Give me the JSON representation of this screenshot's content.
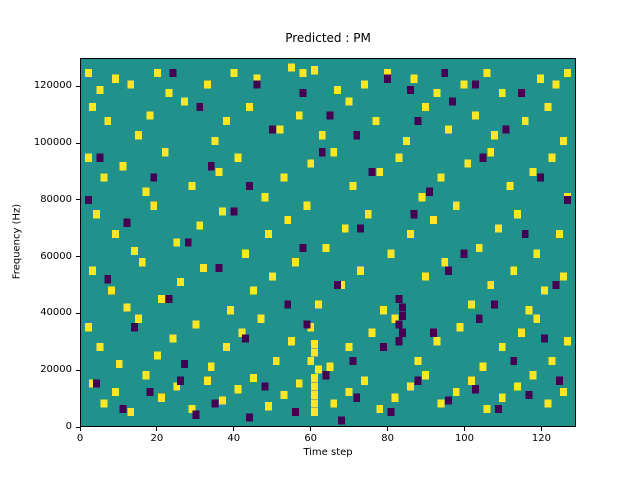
{
  "figure": {
    "background": "#ffffff"
  },
  "chart_data": {
    "type": "heatmap",
    "title": "Predicted : PM",
    "xlabel": "Time step",
    "ylabel": "Frequency (Hz)",
    "xlim": [
      0,
      129
    ],
    "ylim": [
      0,
      130000
    ],
    "x_ticks": [
      0,
      20,
      40,
      60,
      80,
      100,
      120
    ],
    "y_ticks": [
      0,
      20000,
      40000,
      60000,
      80000,
      100000,
      120000
    ],
    "grid": false,
    "legend": "none",
    "colors": {
      "background": "#21918c",
      "high": "#fde725",
      "low": "#440154"
    },
    "cell_size": {
      "width_steps": 1.8,
      "height_hz": 2900
    },
    "series": [
      {
        "name": "high",
        "color_key": "high",
        "points": [
          [
            2,
            125000
          ],
          [
            5,
            119000
          ],
          [
            9,
            123000
          ],
          [
            13,
            121000
          ],
          [
            20,
            125000
          ],
          [
            23,
            118000
          ],
          [
            33,
            121000
          ],
          [
            40,
            125000
          ],
          [
            46,
            123000
          ],
          [
            55,
            127000
          ],
          [
            58,
            125000
          ],
          [
            61,
            126000
          ],
          [
            67,
            119000
          ],
          [
            74,
            121000
          ],
          [
            80,
            125000
          ],
          [
            87,
            123000
          ],
          [
            93,
            118000
          ],
          [
            100,
            121000
          ],
          [
            106,
            125000
          ],
          [
            110,
            118000
          ],
          [
            120,
            123000
          ],
          [
            124,
            121000
          ],
          [
            127,
            125000
          ],
          [
            3,
            113000
          ],
          [
            7,
            108000
          ],
          [
            15,
            103000
          ],
          [
            18,
            110000
          ],
          [
            27,
            115000
          ],
          [
            35,
            101000
          ],
          [
            38,
            108000
          ],
          [
            44,
            113000
          ],
          [
            52,
            105000
          ],
          [
            57,
            110000
          ],
          [
            63,
            103000
          ],
          [
            70,
            115000
          ],
          [
            77,
            108000
          ],
          [
            85,
            101000
          ],
          [
            90,
            113000
          ],
          [
            96,
            105000
          ],
          [
            103,
            110000
          ],
          [
            108,
            103000
          ],
          [
            116,
            108000
          ],
          [
            122,
            113000
          ],
          [
            126,
            101000
          ],
          [
            2,
            95000
          ],
          [
            6,
            88000
          ],
          [
            11,
            92000
          ],
          [
            17,
            83000
          ],
          [
            22,
            97000
          ],
          [
            29,
            85000
          ],
          [
            36,
            90000
          ],
          [
            41,
            95000
          ],
          [
            48,
            81000
          ],
          [
            53,
            88000
          ],
          [
            60,
            93000
          ],
          [
            66,
            97000
          ],
          [
            71,
            85000
          ],
          [
            78,
            90000
          ],
          [
            83,
            95000
          ],
          [
            89,
            81000
          ],
          [
            94,
            88000
          ],
          [
            101,
            93000
          ],
          [
            107,
            97000
          ],
          [
            112,
            85000
          ],
          [
            118,
            90000
          ],
          [
            123,
            95000
          ],
          [
            127,
            81000
          ],
          [
            4,
            75000
          ],
          [
            9,
            68000
          ],
          [
            14,
            62000
          ],
          [
            19,
            78000
          ],
          [
            25,
            65000
          ],
          [
            31,
            71000
          ],
          [
            37,
            76000
          ],
          [
            43,
            61000
          ],
          [
            49,
            68000
          ],
          [
            54,
            73000
          ],
          [
            59,
            78000
          ],
          [
            64,
            63000
          ],
          [
            69,
            70000
          ],
          [
            75,
            75000
          ],
          [
            81,
            61000
          ],
          [
            86,
            68000
          ],
          [
            92,
            73000
          ],
          [
            98,
            78000
          ],
          [
            104,
            63000
          ],
          [
            109,
            70000
          ],
          [
            114,
            75000
          ],
          [
            119,
            61000
          ],
          [
            125,
            68000
          ],
          [
            3,
            55000
          ],
          [
            8,
            48000
          ],
          [
            12,
            42000
          ],
          [
            16,
            58000
          ],
          [
            21,
            45000
          ],
          [
            26,
            51000
          ],
          [
            32,
            56000
          ],
          [
            39,
            41000
          ],
          [
            45,
            48000
          ],
          [
            50,
            53000
          ],
          [
            56,
            58000
          ],
          [
            62,
            43000
          ],
          [
            68,
            50000
          ],
          [
            73,
            55000
          ],
          [
            79,
            41000
          ],
          [
            90,
            53000
          ],
          [
            95,
            58000
          ],
          [
            102,
            43000
          ],
          [
            107,
            50000
          ],
          [
            113,
            55000
          ],
          [
            117,
            41000
          ],
          [
            121,
            48000
          ],
          [
            126,
            53000
          ],
          [
            2,
            35000
          ],
          [
            5,
            28000
          ],
          [
            10,
            22000
          ],
          [
            15,
            38000
          ],
          [
            20,
            25000
          ],
          [
            24,
            31000
          ],
          [
            30,
            36000
          ],
          [
            34,
            21000
          ],
          [
            38,
            28000
          ],
          [
            42,
            33000
          ],
          [
            47,
            38000
          ],
          [
            51,
            23000
          ],
          [
            55,
            30000
          ],
          [
            60,
            35000
          ],
          [
            65,
            21000
          ],
          [
            70,
            28000
          ],
          [
            76,
            33000
          ],
          [
            82,
            38000
          ],
          [
            88,
            23000
          ],
          [
            93,
            30000
          ],
          [
            99,
            35000
          ],
          [
            105,
            21000
          ],
          [
            110,
            28000
          ],
          [
            115,
            33000
          ],
          [
            119,
            38000
          ],
          [
            123,
            23000
          ],
          [
            127,
            30000
          ],
          [
            3,
            15000
          ],
          [
            6,
            8000
          ],
          [
            9,
            12000
          ],
          [
            13,
            5000
          ],
          [
            17,
            18000
          ],
          [
            21,
            10000
          ],
          [
            25,
            14000
          ],
          [
            29,
            6000
          ],
          [
            33,
            16000
          ],
          [
            37,
            9000
          ],
          [
            41,
            13000
          ],
          [
            45,
            17000
          ],
          [
            49,
            7000
          ],
          [
            53,
            11000
          ],
          [
            57,
            15000
          ],
          [
            61,
            5000
          ],
          [
            61,
            8000
          ],
          [
            61,
            11000
          ],
          [
            61,
            14000
          ],
          [
            61,
            17000
          ],
          [
            62,
            20000
          ],
          [
            60,
            23000
          ],
          [
            61,
            26000
          ],
          [
            61,
            29000
          ],
          [
            66,
            8000
          ],
          [
            70,
            12000
          ],
          [
            74,
            16000
          ],
          [
            78,
            6000
          ],
          [
            82,
            10000
          ],
          [
            86,
            14000
          ],
          [
            90,
            18000
          ],
          [
            94,
            8000
          ],
          [
            98,
            12000
          ],
          [
            102,
            16000
          ],
          [
            106,
            6000
          ],
          [
            110,
            10000
          ],
          [
            114,
            14000
          ],
          [
            118,
            18000
          ],
          [
            122,
            8000
          ],
          [
            126,
            12000
          ]
        ]
      },
      {
        "name": "low",
        "color_key": "low",
        "points": [
          [
            24,
            125000
          ],
          [
            46,
            121000
          ],
          [
            58,
            118000
          ],
          [
            80,
            123000
          ],
          [
            86,
            119000
          ],
          [
            95,
            125000
          ],
          [
            103,
            121000
          ],
          [
            115,
            118000
          ],
          [
            31,
            113000
          ],
          [
            50,
            105000
          ],
          [
            65,
            110000
          ],
          [
            72,
            103000
          ],
          [
            88,
            108000
          ],
          [
            97,
            115000
          ],
          [
            111,
            105000
          ],
          [
            5,
            95000
          ],
          [
            19,
            88000
          ],
          [
            34,
            92000
          ],
          [
            44,
            85000
          ],
          [
            63,
            97000
          ],
          [
            76,
            90000
          ],
          [
            91,
            83000
          ],
          [
            105,
            95000
          ],
          [
            120,
            88000
          ],
          [
            2,
            80000
          ],
          [
            127,
            80000
          ],
          [
            12,
            72000
          ],
          [
            28,
            65000
          ],
          [
            40,
            76000
          ],
          [
            58,
            63000
          ],
          [
            73,
            70000
          ],
          [
            87,
            75000
          ],
          [
            100,
            61000
          ],
          [
            116,
            68000
          ],
          [
            7,
            52000
          ],
          [
            23,
            45000
          ],
          [
            36,
            56000
          ],
          [
            54,
            43000
          ],
          [
            67,
            50000
          ],
          [
            83,
            45000
          ],
          [
            84,
            42000
          ],
          [
            84,
            39000
          ],
          [
            83,
            36000
          ],
          [
            84,
            33000
          ],
          [
            83,
            30000
          ],
          [
            96,
            55000
          ],
          [
            108,
            43000
          ],
          [
            124,
            50000
          ],
          [
            14,
            35000
          ],
          [
            27,
            22000
          ],
          [
            43,
            31000
          ],
          [
            59,
            36000
          ],
          [
            71,
            23000
          ],
          [
            79,
            28000
          ],
          [
            92,
            33000
          ],
          [
            104,
            38000
          ],
          [
            113,
            23000
          ],
          [
            121,
            31000
          ],
          [
            4,
            15000
          ],
          [
            11,
            6000
          ],
          [
            18,
            12000
          ],
          [
            26,
            16000
          ],
          [
            35,
            8000
          ],
          [
            48,
            14000
          ],
          [
            56,
            5000
          ],
          [
            64,
            18000
          ],
          [
            72,
            10000
          ],
          [
            81,
            5000
          ],
          [
            88,
            16000
          ],
          [
            96,
            9000
          ],
          [
            103,
            13000
          ],
          [
            109,
            6000
          ],
          [
            117,
            11000
          ],
          [
            125,
            16000
          ],
          [
            68,
            2000
          ],
          [
            44,
            3000
          ],
          [
            30,
            4000
          ]
        ]
      }
    ]
  }
}
